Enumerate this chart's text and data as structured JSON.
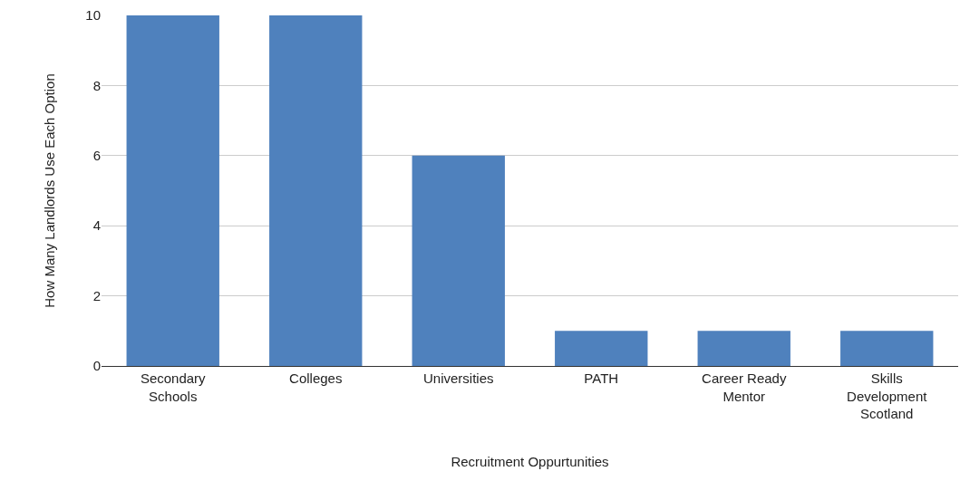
{
  "chart_data": {
    "type": "bar",
    "xlabel": "Recruitment Oppurtunities",
    "ylabel": "How Many Landlords Use Each Option",
    "categories": [
      "Secondary Schools",
      "Colleges",
      "Universities",
      "PATH",
      "Career Ready Mentor",
      "Skills Development Scotland"
    ],
    "values": [
      10,
      10,
      6,
      1,
      1,
      1
    ],
    "color": "#4f81bd",
    "ylim": [
      0,
      10
    ],
    "yticks": [
      0,
      2,
      4,
      6,
      8,
      10
    ],
    "grid": "y"
  }
}
